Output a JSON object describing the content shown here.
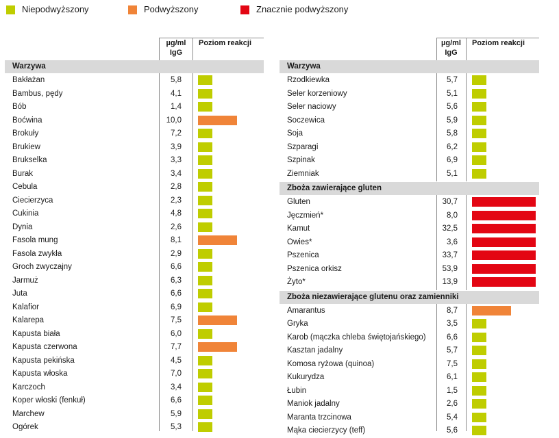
{
  "colors": {
    "normal": "#bfcd00",
    "elevated": "#f08438",
    "high": "#e30613",
    "section_bg": "#d9d9d9"
  },
  "legend": [
    {
      "key": "normal",
      "label": "Niepodwyższony"
    },
    {
      "key": "elevated",
      "label": "Podwyższony"
    },
    {
      "key": "high",
      "label": "Znacznie podwyższony"
    }
  ],
  "header": {
    "unit_line1": "µg/ml",
    "unit_line2": "IgG",
    "level": "Poziom reakcji"
  },
  "left": {
    "sections": [
      {
        "title": "Warzywa",
        "rows": [
          {
            "name": "Bakłażan",
            "value": "5,8",
            "level": "normal"
          },
          {
            "name": "Bambus, pędy",
            "value": "4,1",
            "level": "normal"
          },
          {
            "name": "Bób",
            "value": "1,4",
            "level": "normal"
          },
          {
            "name": "Boćwina",
            "value": "10,0",
            "level": "elevated"
          },
          {
            "name": "Brokuły",
            "value": "7,2",
            "level": "normal"
          },
          {
            "name": "Brukiew",
            "value": "3,9",
            "level": "normal"
          },
          {
            "name": "Brukselka",
            "value": "3,3",
            "level": "normal"
          },
          {
            "name": "Burak",
            "value": "3,4",
            "level": "normal"
          },
          {
            "name": "Cebula",
            "value": "2,8",
            "level": "normal"
          },
          {
            "name": "Ciecierzyca",
            "value": "2,3",
            "level": "normal"
          },
          {
            "name": "Cukinia",
            "value": "4,8",
            "level": "normal"
          },
          {
            "name": "Dynia",
            "value": "2,6",
            "level": "normal"
          },
          {
            "name": "Fasola mung",
            "value": "8,1",
            "level": "elevated"
          },
          {
            "name": "Fasola zwykła",
            "value": "2,9",
            "level": "normal"
          },
          {
            "name": "Groch zwyczajny",
            "value": "6,6",
            "level": "normal"
          },
          {
            "name": "Jarmuż",
            "value": "6,3",
            "level": "normal"
          },
          {
            "name": "Juta",
            "value": "6,6",
            "level": "normal"
          },
          {
            "name": "Kalafior",
            "value": "6,9",
            "level": "normal"
          },
          {
            "name": "Kalarepa",
            "value": "7,5",
            "level": "elevated"
          },
          {
            "name": "Kapusta biała",
            "value": "6,0",
            "level": "normal"
          },
          {
            "name": "Kapusta czerwona",
            "value": "7,7",
            "level": "elevated"
          },
          {
            "name": "Kapusta pekińska",
            "value": "4,5",
            "level": "normal"
          },
          {
            "name": "Kapusta włoska",
            "value": "7,0",
            "level": "normal"
          },
          {
            "name": "Karczoch",
            "value": "3,4",
            "level": "normal"
          },
          {
            "name": "Koper włoski (fenkuł)",
            "value": "6,6",
            "level": "normal"
          },
          {
            "name": "Marchew",
            "value": "5,9",
            "level": "normal"
          },
          {
            "name": "Ogórek",
            "value": "5,3",
            "level": "normal"
          }
        ]
      }
    ]
  },
  "right": {
    "sections": [
      {
        "title": "Warzywa",
        "rows": [
          {
            "name": "Rzodkiewka",
            "value": "5,7",
            "level": "normal"
          },
          {
            "name": "Seler korzeniowy",
            "value": "5,1",
            "level": "normal"
          },
          {
            "name": "Seler naciowy",
            "value": "5,6",
            "level": "normal"
          },
          {
            "name": "Soczewica",
            "value": "5,9",
            "level": "normal"
          },
          {
            "name": "Soja",
            "value": "5,8",
            "level": "normal"
          },
          {
            "name": "Szparagi",
            "value": "6,2",
            "level": "normal"
          },
          {
            "name": "Szpinak",
            "value": "6,9",
            "level": "normal"
          },
          {
            "name": "Ziemniak",
            "value": "5,1",
            "level": "normal"
          }
        ]
      },
      {
        "title": "Zboża zawierające gluten",
        "rows": [
          {
            "name": "Gluten",
            "value": "30,7",
            "level": "high"
          },
          {
            "name": "Jęczmień*",
            "value": "8,0",
            "level": "high"
          },
          {
            "name": "Kamut",
            "value": "32,5",
            "level": "high"
          },
          {
            "name": "Owies*",
            "value": "3,6",
            "level": "high"
          },
          {
            "name": "Pszenica",
            "value": "33,7",
            "level": "high"
          },
          {
            "name": "Pszenica orkisz",
            "value": "53,9",
            "level": "high"
          },
          {
            "name": "Żyto*",
            "value": "13,9",
            "level": "high"
          }
        ]
      },
      {
        "title": "Zboża niezawierające glutenu oraz zamienniki",
        "rows": [
          {
            "name": "Amarantus",
            "value": "8,7",
            "level": "elevated"
          },
          {
            "name": "Gryka",
            "value": "3,5",
            "level": "normal"
          },
          {
            "name": "Karob (mączka chleba świętojańskiego)",
            "value": "6,6",
            "level": "normal"
          },
          {
            "name": "Kasztan jadalny",
            "value": "5,7",
            "level": "normal"
          },
          {
            "name": "Komosa ryżowa (quinoa)",
            "value": "7,5",
            "level": "normal"
          },
          {
            "name": "Kukurydza",
            "value": "6,1",
            "level": "normal"
          },
          {
            "name": "Łubin",
            "value": "1,5",
            "level": "normal"
          },
          {
            "name": "Maniok jadalny",
            "value": "2,6",
            "level": "normal"
          },
          {
            "name": "Maranta trzcinowa",
            "value": "5,4",
            "level": "normal"
          },
          {
            "name": "Mąka ciecierzycy (teff)",
            "value": "5,6",
            "level": "normal"
          }
        ]
      }
    ]
  }
}
